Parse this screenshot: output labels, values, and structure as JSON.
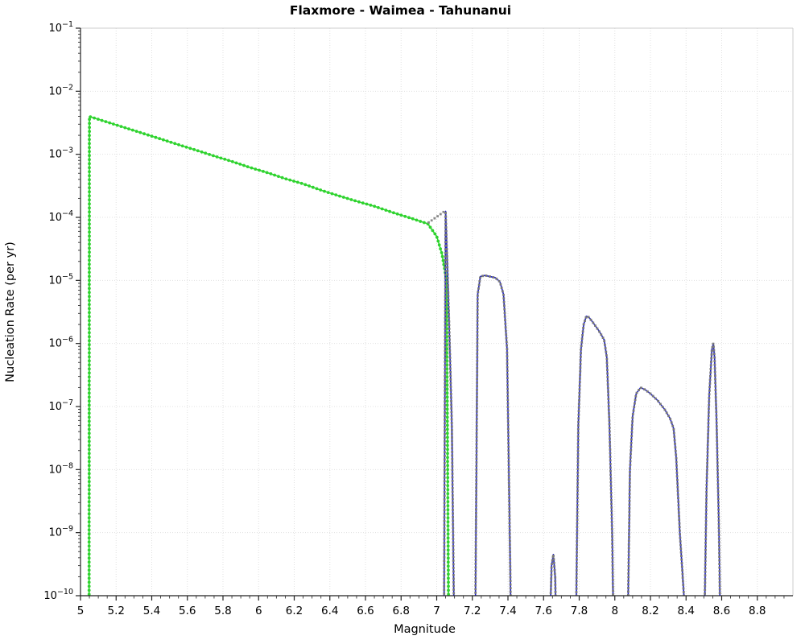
{
  "figure": {
    "title": "Flaxmore - Waimea - Tahunanui"
  },
  "chart_data": {
    "type": "line",
    "title": "Flaxmore - Waimea - Tahunanui",
    "xlabel": "Magnitude",
    "ylabel": "Nucleation Rate (per yr)",
    "xlim": [
      5.0,
      9.0
    ],
    "ylim": [
      1e-10,
      0.1
    ],
    "y_log": true,
    "grid": true,
    "background_color": "#ffffff",
    "x_tick_values": [
      5,
      5.2,
      5.4,
      5.6,
      5.8,
      6,
      6.2,
      6.4,
      6.6,
      6.8,
      7,
      7.2,
      7.4,
      7.6,
      7.8,
      8,
      8.2,
      8.4,
      8.6,
      8.8
    ],
    "x_tick_labels": [
      "5",
      "5.2",
      "5.4",
      "5.6",
      "5.8",
      "6",
      "6.2",
      "6.4",
      "6.6",
      "6.8",
      "7",
      "7.2",
      "7.4",
      "7.6",
      "7.8",
      "8",
      "8.2",
      "8.4",
      "8.6",
      "8.8"
    ],
    "y_tick_exponents": [
      -1,
      -2,
      -3,
      -4,
      -5,
      -6,
      -7,
      -8,
      -9,
      -10
    ],
    "series": [
      {
        "name": "green-series",
        "color": "#2fd32f",
        "line": "solid",
        "marker": "circle",
        "marker_color": "#2fd32f",
        "points": [
          [
            5.048,
            1e-11
          ],
          [
            5.05,
            0.00398
          ],
          [
            5.15,
            0.00324
          ],
          [
            5.25,
            0.00264
          ],
          [
            5.35,
            0.00215
          ],
          [
            5.45,
            0.00175
          ],
          [
            5.55,
            0.00142
          ],
          [
            5.65,
            0.00116
          ],
          [
            5.75,
            0.00094
          ],
          [
            5.85,
            0.00077
          ],
          [
            5.95,
            0.00062
          ],
          [
            6.05,
            0.00051
          ],
          [
            6.15,
            0.00041
          ],
          [
            6.25,
            0.00034
          ],
          [
            6.35,
            0.00027
          ],
          [
            6.45,
            0.00022
          ],
          [
            6.55,
            0.00018
          ],
          [
            6.65,
            0.00015
          ],
          [
            6.75,
            0.00012
          ],
          [
            6.85,
            9.8e-05
          ],
          [
            6.95,
            7.9e-05
          ],
          [
            7.0,
            5e-05
          ],
          [
            7.03,
            2.6e-05
          ],
          [
            7.055,
            1e-05
          ],
          [
            7.068,
            1e-11
          ]
        ]
      },
      {
        "name": "blue-series",
        "color": "#1616cc",
        "line": "solid",
        "marker": "square",
        "marker_color": "#787878",
        "points": [
          [
            7.04,
            1e-11
          ],
          [
            7.05,
            0.000125
          ],
          [
            7.058,
            2.5e-05
          ],
          [
            7.07,
            2e-06
          ],
          [
            7.085,
            5e-08
          ],
          [
            7.1,
            1e-11
          ],
          [
            7.215,
            1e-11
          ],
          [
            7.23,
            6e-06
          ],
          [
            7.245,
            1.15e-05
          ],
          [
            7.27,
            1.2e-05
          ],
          [
            7.3,
            1.15e-05
          ],
          [
            7.33,
            1.1e-05
          ],
          [
            7.355,
            9.5e-06
          ],
          [
            7.375,
            6e-06
          ],
          [
            7.395,
            8e-07
          ],
          [
            7.41,
            1e-09
          ],
          [
            7.42,
            1e-11
          ],
          [
            7.63,
            1e-11
          ],
          [
            7.645,
            3e-10
          ],
          [
            7.655,
            4.5e-10
          ],
          [
            7.665,
            2e-10
          ],
          [
            7.675,
            1e-11
          ],
          [
            7.78,
            1e-11
          ],
          [
            7.795,
            5e-08
          ],
          [
            7.81,
            8e-07
          ],
          [
            7.825,
            2e-06
          ],
          [
            7.84,
            2.7e-06
          ],
          [
            7.855,
            2.6e-06
          ],
          [
            7.88,
            2.1e-06
          ],
          [
            7.91,
            1.6e-06
          ],
          [
            7.94,
            1.15e-06
          ],
          [
            7.955,
            6e-07
          ],
          [
            7.97,
            5e-08
          ],
          [
            7.985,
            1e-09
          ],
          [
            7.995,
            1e-11
          ],
          [
            8.07,
            1e-11
          ],
          [
            8.085,
            1e-08
          ],
          [
            8.1,
            7e-08
          ],
          [
            8.12,
            1.6e-07
          ],
          [
            8.145,
            2e-07
          ],
          [
            8.17,
            1.85e-07
          ],
          [
            8.2,
            1.6e-07
          ],
          [
            8.24,
            1.25e-07
          ],
          [
            8.28,
            9e-08
          ],
          [
            8.31,
            6.5e-08
          ],
          [
            8.33,
            4.5e-08
          ],
          [
            8.345,
            1.5e-08
          ],
          [
            8.365,
            1e-09
          ],
          [
            8.395,
            5e-11
          ],
          [
            8.43,
            1e-11
          ],
          [
            8.5,
            1e-11
          ],
          [
            8.515,
            5e-09
          ],
          [
            8.53,
            1.5e-07
          ],
          [
            8.545,
            8e-07
          ],
          [
            8.553,
            1e-06
          ],
          [
            8.56,
            6e-07
          ],
          [
            8.572,
            5e-08
          ],
          [
            8.585,
            1e-09
          ],
          [
            8.595,
            1e-11
          ]
        ]
      },
      {
        "name": "gray-dotted-series",
        "color": "#8a8a8a",
        "line": "none",
        "marker": "square",
        "marker_color": "#8a8a8a",
        "points": [
          [
            6.955,
            8.3e-05
          ],
          [
            6.98,
            9.3e-05
          ],
          [
            7.005,
            0.000104
          ],
          [
            7.03,
            0.000117
          ],
          [
            7.05,
            0.00013
          ]
        ]
      }
    ]
  }
}
